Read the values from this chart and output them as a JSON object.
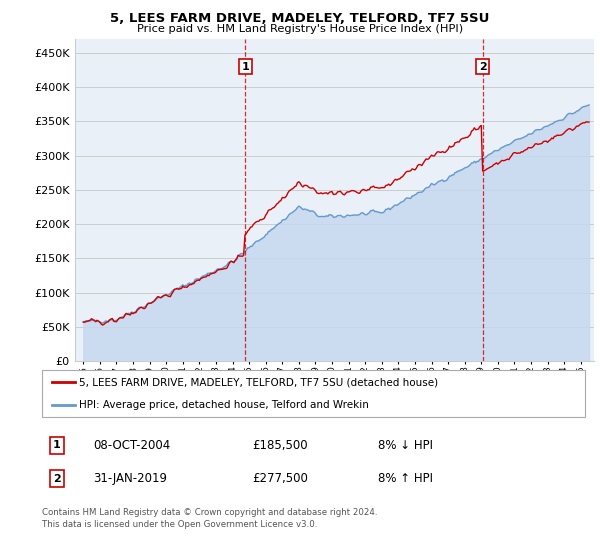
{
  "title": "5, LEES FARM DRIVE, MADELEY, TELFORD, TF7 5SU",
  "subtitle": "Price paid vs. HM Land Registry's House Price Index (HPI)",
  "legend_label_red": "5, LEES FARM DRIVE, MADELEY, TELFORD, TF7 5SU (detached house)",
  "legend_label_blue": "HPI: Average price, detached house, Telford and Wrekin",
  "annotation1_year": 2004.77,
  "annotation1_value": 185500,
  "annotation2_year": 2019.08,
  "annotation2_value": 277500,
  "red_color": "#cc0000",
  "blue_color": "#6699cc",
  "blue_fill_color": "#c5d8ee",
  "grid_color": "#cccccc",
  "chart_bg": "#eaf0f8",
  "ylim": [
    0,
    470000
  ],
  "xlim_start": 1994.5,
  "xlim_end": 2025.8,
  "footer": "Contains HM Land Registry data © Crown copyright and database right 2024.\nThis data is licensed under the Open Government Licence v3.0.",
  "table_rows": [
    [
      "1",
      "08-OCT-2004",
      "£185,500",
      "8% ↓ HPI"
    ],
    [
      "2",
      "31-JAN-2019",
      "£277,500",
      "8% ↑ HPI"
    ]
  ]
}
